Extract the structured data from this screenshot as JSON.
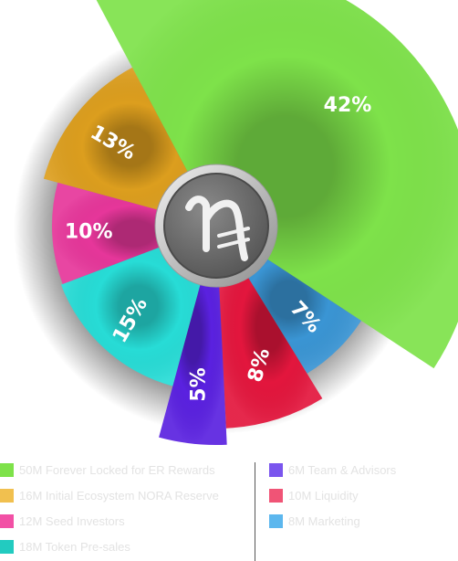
{
  "chart_data": {
    "type": "pie",
    "title": "",
    "slices": [
      {
        "label": "50M Forever Locked for ER Rewards",
        "value": 42,
        "display": "42%",
        "color": "#7ee24a"
      },
      {
        "label": "8M Marketing",
        "value": 7,
        "display": "7%",
        "color": "#3a95d4"
      },
      {
        "label": "10M Liquidity",
        "value": 8,
        "display": "8%",
        "color": "#e3163d"
      },
      {
        "label": "6M Team & Advisors",
        "value": 5,
        "display": "5%",
        "color": "#5a21e0"
      },
      {
        "label": "18M Token Pre-sales",
        "value": 15,
        "display": "15%",
        "color": "#27dcd6"
      },
      {
        "label": "12M Seed Investors",
        "value": 10,
        "display": "10%",
        "color": "#e6369a"
      },
      {
        "label": "16M Initial Ecosystem NORA Reserve",
        "value": 13,
        "display": "13%",
        "color": "#dc9e1e"
      }
    ],
    "legend": {
      "left": [
        {
          "label": "50M Forever Locked for ER Rewards",
          "color": "#7ee24a"
        },
        {
          "label": "16M Initial Ecosystem NORA Reserve",
          "color": "#f1c04f"
        },
        {
          "label": "12M Seed Investors",
          "color": "#f250a5"
        },
        {
          "label": "18M Token Pre-sales",
          "color": "#22cbc0"
        }
      ],
      "right": [
        {
          "label": "6M Team & Advisors",
          "color": "#7a55ee"
        },
        {
          "label": "10M Liquidity",
          "color": "#f05476"
        },
        {
          "label": "8M Marketing",
          "color": "#5cb7ee"
        }
      ]
    }
  },
  "center_logo": {
    "icon": "nora-currency-icon",
    "color": "#6b6b6b"
  }
}
